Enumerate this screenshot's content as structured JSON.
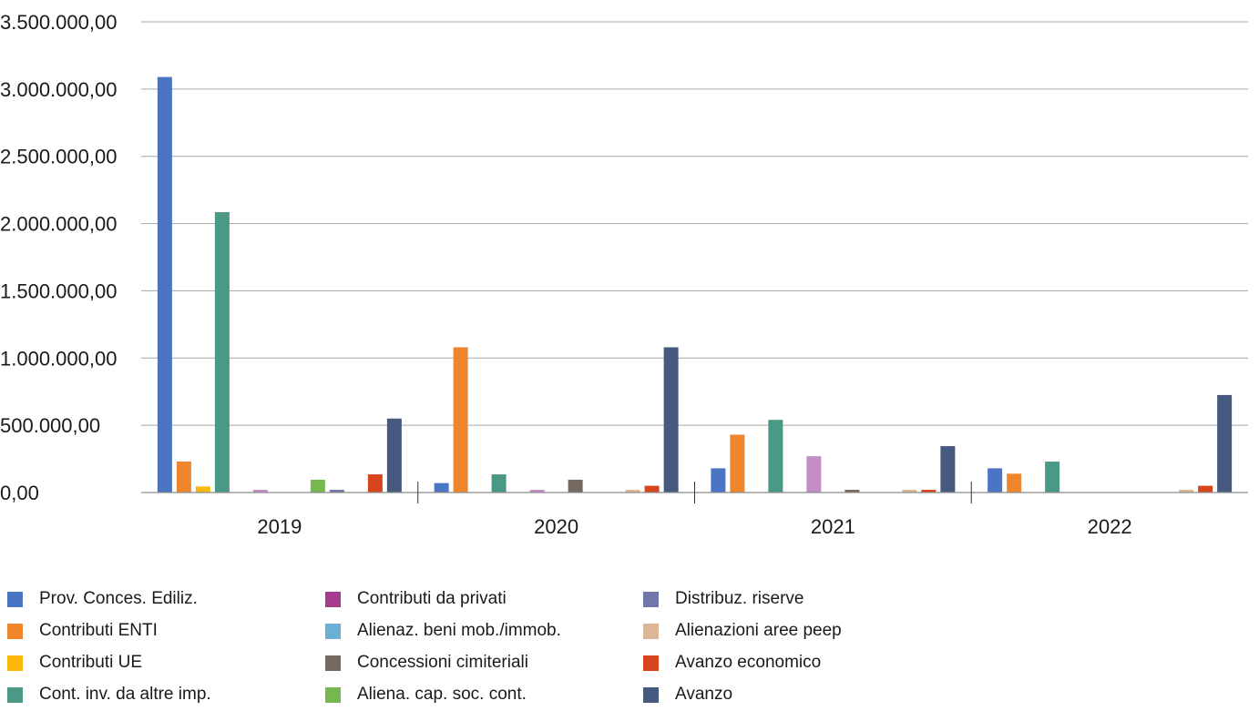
{
  "chart_data": {
    "type": "bar",
    "categories": [
      "2019",
      "2020",
      "2021",
      "2022"
    ],
    "y_ticks": [
      "0,00",
      "500.000,00",
      "1.000.000,00",
      "1.500.000,00",
      "2.000.000,00",
      "2.500.000,00",
      "3.000.000,00",
      "3.500.000,00"
    ],
    "ylim": [
      0,
      3500000
    ],
    "grid": true,
    "legend_position": "bottom",
    "series": [
      {
        "name": "Prov. Conces. Ediliz.",
        "color": "#4a74c4",
        "values": [
          3090000,
          70000,
          180000,
          180000
        ]
      },
      {
        "name": "Contributi ENTI",
        "color": "#f0862b",
        "values": [
          230000,
          1080000,
          430000,
          140000
        ]
      },
      {
        "name": "Contributi UE",
        "color": "#fbb80b",
        "values": [
          45000,
          0,
          0,
          0
        ]
      },
      {
        "name": "Cont. inv. da altre imp.",
        "color": "#4a9885",
        "values": [
          2085000,
          135000,
          540000,
          230000
        ]
      },
      {
        "name": "Contributi da privati",
        "color": "#a33c8d",
        "values": [
          0,
          0,
          0,
          0
        ]
      },
      {
        "name": "Distribuz. riserve",
        "color": "#c68cc6",
        "values": [
          20000,
          20000,
          270000,
          0
        ]
      },
      {
        "name": "Alienaz. beni mob./immob.",
        "color": "#6bb0d3",
        "values": [
          0,
          0,
          0,
          0
        ]
      },
      {
        "name": "Concessioni cimiteriali",
        "color": "#756a62",
        "values": [
          0,
          95000,
          20000,
          0
        ]
      },
      {
        "name": "Aliena. cap. soc. cont.",
        "color": "#76b84f",
        "values": [
          95000,
          0,
          0,
          0
        ]
      },
      {
        "name": "Distribuz. riserve",
        "color": "#7177ab",
        "values": [
          20000,
          0,
          0,
          0
        ]
      },
      {
        "name": "Alienazioni aree peep",
        "color": "#dcb695",
        "values": [
          0,
          20000,
          20000,
          20000
        ]
      },
      {
        "name": "Avanzo economico",
        "color": "#d8441d",
        "values": [
          135000,
          50000,
          20000,
          50000
        ]
      },
      {
        "name": "Avanzo",
        "color": "#465a80",
        "values": [
          550000,
          1080000,
          345000,
          725000
        ]
      }
    ]
  },
  "legend": [
    {
      "label": "Prov. Conces. Ediliz.",
      "color": "#4a74c4"
    },
    {
      "label": "Contributi ENTI",
      "color": "#f0862b"
    },
    {
      "label": "Contributi UE",
      "color": "#fbb80b"
    },
    {
      "label": "Cont. inv. da altre imp.",
      "color": "#4a9885"
    },
    {
      "label": "Contributi da privati",
      "color": "#a33c8d"
    },
    {
      "label": "Alienaz. beni mob./immob.",
      "color": "#6bb0d3"
    },
    {
      "label": "Concessioni cimiteriali",
      "color": "#756a62"
    },
    {
      "label": "Aliena. cap. soc. cont.",
      "color": "#76b84f"
    },
    {
      "label": "Distribuz. riserve",
      "color": "#7177ab"
    },
    {
      "label": "Alienazioni aree peep",
      "color": "#dcb695"
    },
    {
      "label": "Avanzo economico",
      "color": "#d8441d"
    },
    {
      "label": "Avanzo",
      "color": "#465a80"
    }
  ]
}
